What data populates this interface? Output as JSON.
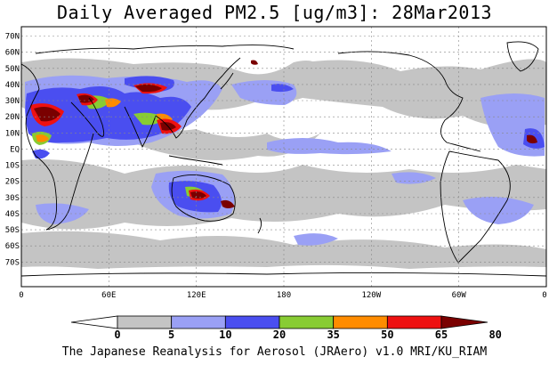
{
  "title": "Daily Averaged PM2.5 [ug/m3]: 28Mar2013",
  "footer": "The Japanese Reanalysis for Aerosol (JRAero) v1.0 MRI/KU_RIAM",
  "lat_labels": [
    "70N",
    "60N",
    "50N",
    "40N",
    "30N",
    "20N",
    "10N",
    "EQ",
    "10S",
    "20S",
    "30S",
    "40S",
    "50S",
    "60S",
    "70S"
  ],
  "lon_labels": [
    "0",
    "60E",
    "120E",
    "180",
    "120W",
    "60W",
    "0"
  ],
  "legend": {
    "bounds": [
      "0",
      "5",
      "10",
      "20",
      "35",
      "50",
      "65",
      "80"
    ],
    "colors": [
      "#ffffff",
      "#c4c4c4",
      "#9aa0f5",
      "#4a4ef0",
      "#88cc33",
      "#ff8c00",
      "#ee1111",
      "#7a0000"
    ]
  },
  "colors": {
    "ocean": "#ffffff",
    "land": "#ffffff",
    "grid": "#888888",
    "coast": "#000000"
  }
}
